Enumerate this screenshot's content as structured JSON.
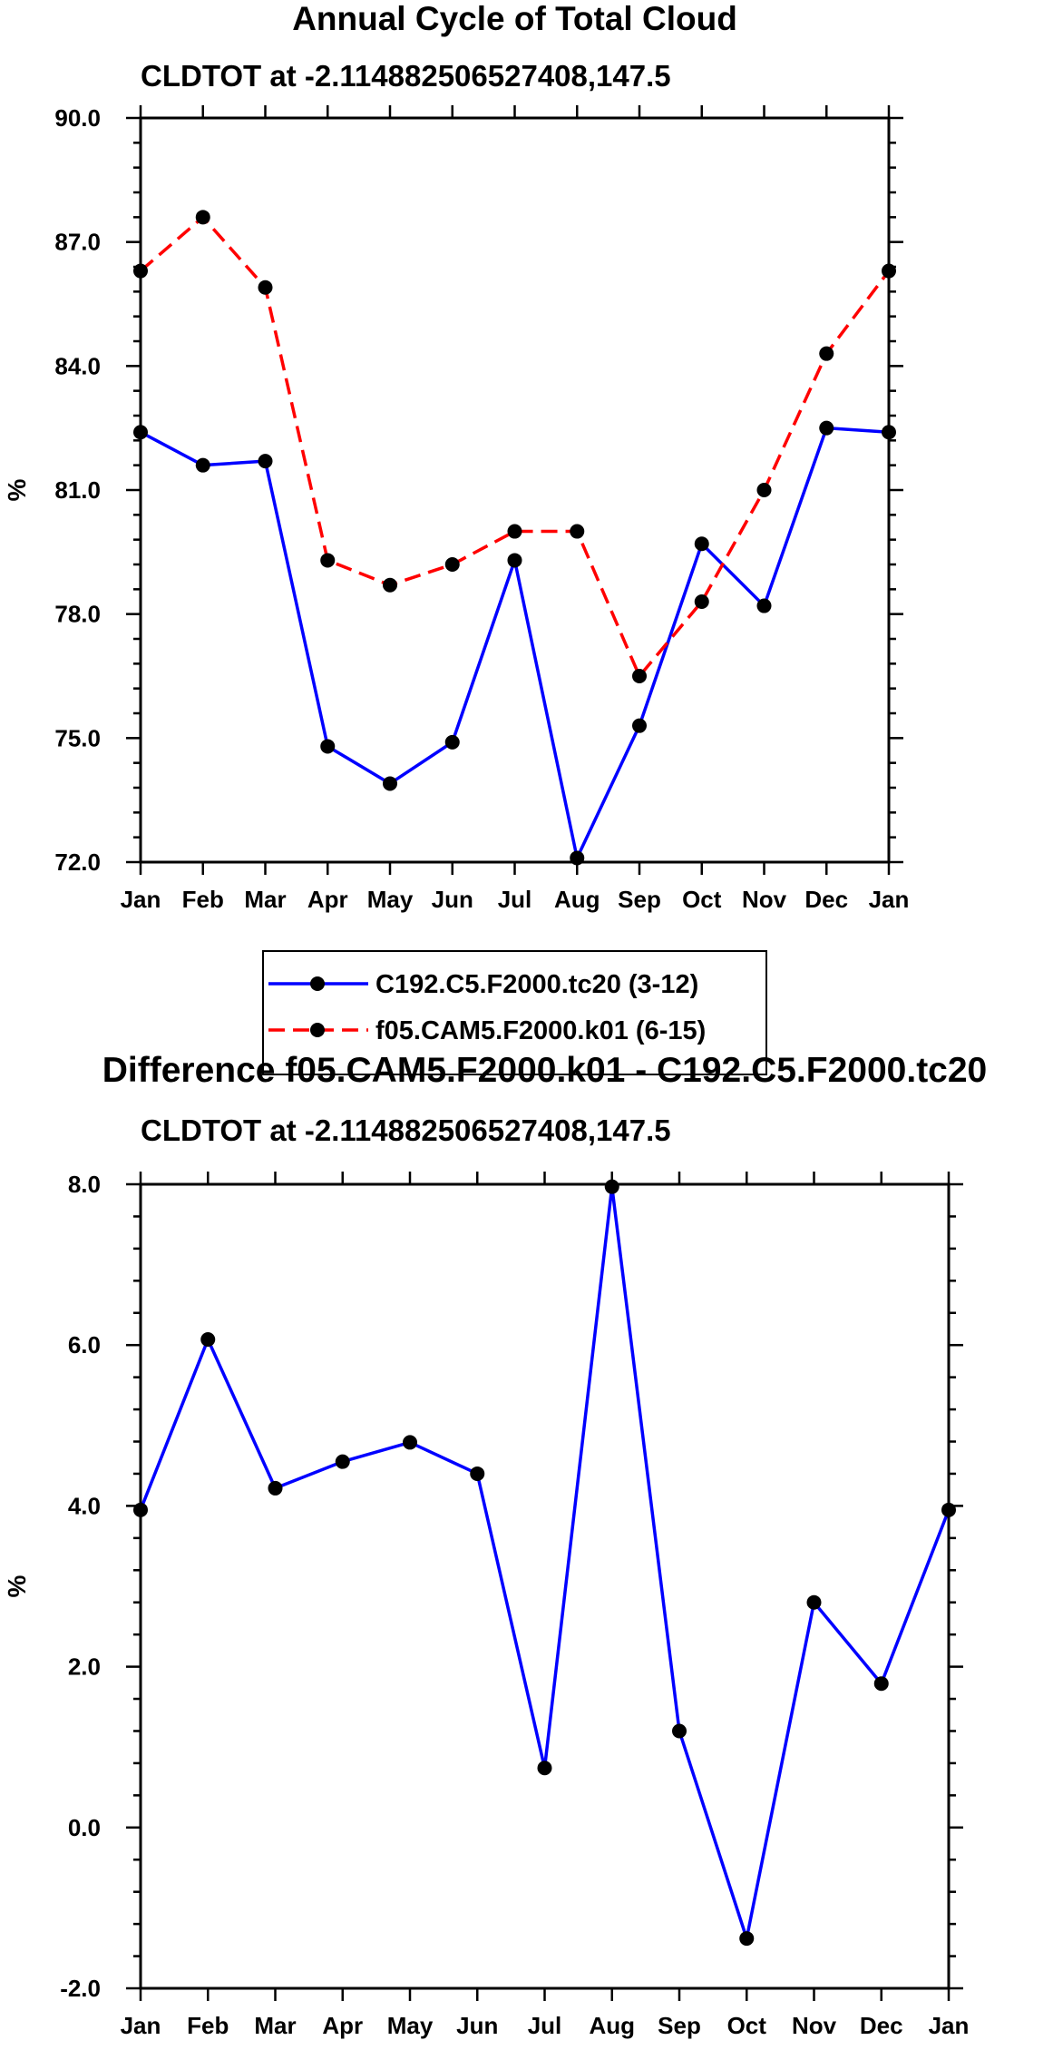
{
  "chart_data": [
    {
      "type": "line",
      "title": "Annual Cycle of Total Cloud",
      "subtitle": "CLDTOT at -2.114882506527408,147.5",
      "ylabel": "%",
      "xlabel": "",
      "ylim": [
        72.0,
        90.0
      ],
      "yticks": [
        "72.0",
        "75.0",
        "78.0",
        "81.0",
        "84.0",
        "87.0",
        "90.0"
      ],
      "categories": [
        "Jan",
        "Feb",
        "Mar",
        "Apr",
        "May",
        "Jun",
        "Jul",
        "Aug",
        "Sep",
        "Oct",
        "Nov",
        "Dec",
        "Jan"
      ],
      "series": [
        {
          "name": "C192.C5.F2000.tc20 (3-12)",
          "color": "#0000ff",
          "dash": "solid",
          "values": [
            82.4,
            81.6,
            81.7,
            74.8,
            73.9,
            74.9,
            79.3,
            72.1,
            75.3,
            79.7,
            78.2,
            82.5,
            82.4
          ]
        },
        {
          "name": "f05.CAM5.F2000.k01 (6-15)",
          "color": "#ff0000",
          "dash": "dashed",
          "values": [
            86.3,
            87.6,
            85.9,
            79.3,
            78.7,
            79.2,
            80.0,
            80.0,
            76.5,
            78.3,
            81.0,
            84.3,
            86.3
          ]
        }
      ],
      "legend": "bottom-center"
    },
    {
      "type": "line",
      "title": "Difference f05.CAM5.F2000.k01 - C192.C5.F2000.tc20",
      "subtitle": "CLDTOT at -2.114882506527408,147.5",
      "ylabel": "%",
      "xlabel": "",
      "ylim": [
        -2.0,
        8.0
      ],
      "yticks": [
        "-2.0",
        "0.0",
        "2.0",
        "4.0",
        "6.0",
        "8.0"
      ],
      "categories": [
        "Jan",
        "Feb",
        "Mar",
        "Apr",
        "May",
        "Jun",
        "Jul",
        "Aug",
        "Sep",
        "Oct",
        "Nov",
        "Dec",
        "Jan"
      ],
      "series": [
        {
          "name": "Difference",
          "color": "#0000ff",
          "dash": "solid",
          "values": [
            3.95,
            6.07,
            4.22,
            4.55,
            4.79,
            4.4,
            0.74,
            7.97,
            1.2,
            -1.38,
            2.8,
            1.79,
            3.95
          ]
        }
      ]
    }
  ]
}
